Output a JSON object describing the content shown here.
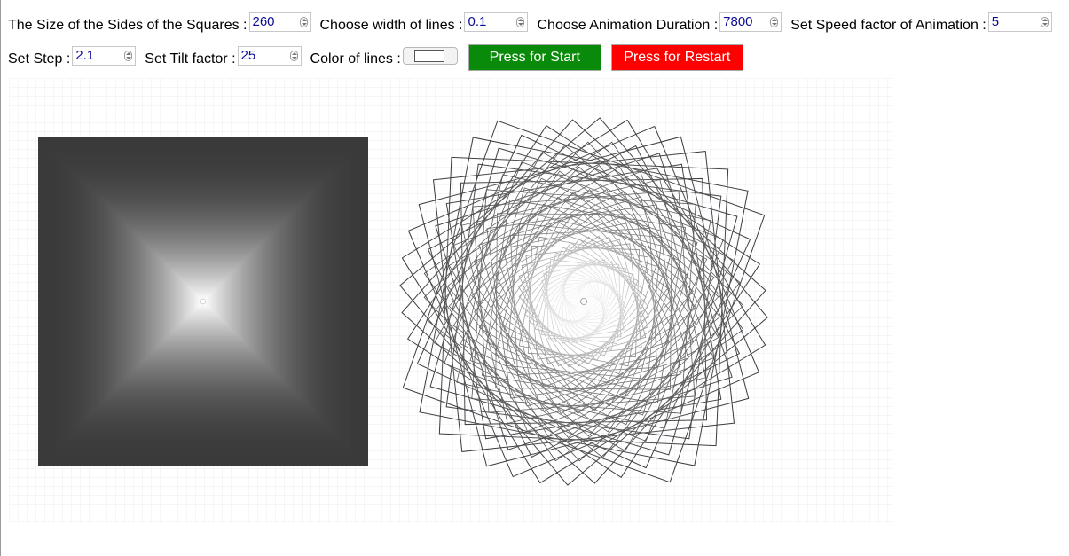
{
  "controls": {
    "size": {
      "label": "The Size of the Sides of the Squares :",
      "value": "260"
    },
    "line_width": {
      "label": "Choose width of lines :",
      "value": "0.1"
    },
    "duration": {
      "label": "Choose Animation Duration :",
      "value": "7800"
    },
    "speed": {
      "label": "Set Speed factor of Animation :",
      "value": "5"
    },
    "step": {
      "label": "Set Step :",
      "value": "2.1"
    },
    "tilt": {
      "label": "Set Tilt factor :",
      "value": "25"
    },
    "color": {
      "label": "Color of lines :",
      "value": "#ffffff"
    }
  },
  "buttons": {
    "start_label": "Press for Start",
    "restart_label": "Press for Restart",
    "start_color": "#0a8a0a",
    "restart_color": "#ff0000"
  },
  "canvas": {
    "background": "#ffffff",
    "grid_color": "#e8eef6",
    "square_fill": "#3a3a3a",
    "spiral_stroke": "#3a3a3a",
    "center_glow": "#ffffff"
  }
}
